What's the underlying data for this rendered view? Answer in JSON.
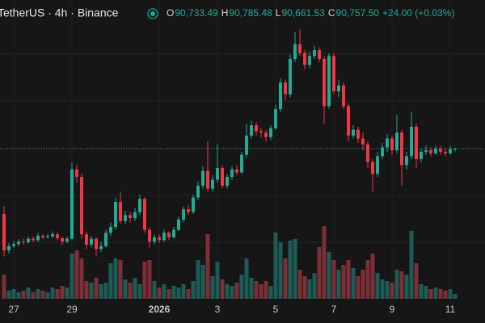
{
  "chart_data": {
    "type": "candlestick",
    "title": "TetherUS · 4h · Binance",
    "ohlc_legend": [
      {
        "label": "O",
        "value": "90,733.49"
      },
      {
        "label": "H",
        "value": "90,785.48"
      },
      {
        "label": "L",
        "value": "90,661.53"
      },
      {
        "label": "C",
        "value": "90,757.50"
      }
    ],
    "change": "+24.00 (+0.03%)",
    "up_color": "#22ab94",
    "down_color": "#f23645",
    "volume_up_color": "#1d5c56",
    "volume_down_color": "#7c2f35",
    "ylim": [
      84840,
      95800
    ],
    "volume_ylim": [
      0,
      9250
    ],
    "categories": [
      null,
      null,
      "27",
      null,
      null,
      null,
      null,
      null,
      null,
      null,
      null,
      null,
      null,
      null,
      "29",
      null,
      null,
      null,
      null,
      null,
      null,
      null,
      null,
      null,
      null,
      null,
      null,
      null,
      null,
      null,
      null,
      null,
      "2026",
      null,
      null,
      null,
      null,
      null,
      null,
      null,
      null,
      null,
      null,
      null,
      "3",
      null,
      null,
      null,
      null,
      null,
      null,
      null,
      null,
      null,
      null,
      null,
      "5",
      null,
      null,
      null,
      null,
      null,
      null,
      null,
      null,
      null,
      null,
      null,
      "7",
      null,
      null,
      null,
      null,
      null,
      null,
      null,
      null,
      null,
      null,
      null,
      "9",
      null,
      null,
      null,
      null,
      null,
      null,
      null,
      null,
      null,
      null,
      null,
      "11",
      null
    ],
    "open": [
      88540,
      87310,
      87450,
      87520,
      87600,
      87580,
      87700,
      87650,
      87800,
      87750,
      87780,
      87850,
      87720,
      87600,
      87700,
      90050,
      89800,
      87850,
      87500,
      87700,
      87350,
      87450,
      87900,
      88100,
      88950,
      88300,
      88500,
      88400,
      88600,
      89050,
      88000,
      87600,
      87750,
      87650,
      87900,
      87750,
      88000,
      88350,
      88700,
      88600,
      89100,
      89500,
      90000,
      89400,
      89700,
      90100,
      89500,
      89800,
      90050,
      89950,
      90550,
      91200,
      91550,
      91350,
      91300,
      91150,
      91450,
      92100,
      93000,
      92600,
      93800,
      94300,
      94000,
      93600,
      93900,
      94100,
      93800,
      92200,
      93900,
      92700,
      92900,
      92200,
      91200,
      91400,
      91100,
      90900,
      90300,
      89900,
      90500,
      90800,
      91100,
      90700,
      91300,
      90200,
      90500,
      91500,
      90400,
      90650,
      90700,
      90600,
      90750,
      90650,
      90600,
      90733.49
    ],
    "high": [
      88800,
      87550,
      87620,
      87680,
      87700,
      87780,
      87760,
      87900,
      87850,
      87860,
      87950,
      87900,
      87760,
      87780,
      90300,
      90200,
      89900,
      87950,
      87800,
      87750,
      87600,
      88000,
      88250,
      89100,
      89300,
      88650,
      88600,
      88750,
      89200,
      89100,
      88100,
      87850,
      87850,
      88000,
      87950,
      88100,
      88450,
      88800,
      88850,
      89200,
      89650,
      90150,
      91000,
      89850,
      90900,
      90200,
      89900,
      90150,
      90200,
      90650,
      91600,
      91700,
      91650,
      91450,
      91400,
      91550,
      92250,
      93150,
      93100,
      93950,
      94700,
      94800,
      94100,
      94050,
      94250,
      94200,
      93900,
      94000,
      94000,
      93100,
      93000,
      92300,
      91550,
      91500,
      91300,
      91000,
      90400,
      90650,
      90950,
      91250,
      91200,
      91900,
      91400,
      90650,
      92000,
      91600,
      90750,
      90850,
      90800,
      90850,
      90850,
      90750,
      90850,
      90785.48
    ],
    "low": [
      87100,
      87200,
      87380,
      87450,
      87500,
      87520,
      87580,
      87600,
      87680,
      87700,
      87720,
      87650,
      87500,
      87550,
      87650,
      89600,
      87700,
      87350,
      87400,
      87100,
      87250,
      87400,
      87800,
      88000,
      88200,
      88200,
      88250,
      88300,
      88500,
      87900,
      87400,
      87500,
      87550,
      87600,
      87650,
      87700,
      87950,
      88250,
      88500,
      88550,
      89000,
      89400,
      89300,
      89300,
      89600,
      89400,
      89400,
      89700,
      89850,
      89900,
      90450,
      91100,
      91200,
      91150,
      91000,
      91050,
      91400,
      92000,
      92400,
      92500,
      93700,
      93900,
      93450,
      93500,
      93800,
      93700,
      91600,
      92100,
      92600,
      92500,
      92100,
      91000,
      91100,
      90950,
      90700,
      90100,
      89300,
      89800,
      90400,
      90650,
      90550,
      90600,
      89500,
      90050,
      90400,
      90100,
      90300,
      90550,
      90500,
      90550,
      90550,
      90500,
      90550,
      90661.53
    ],
    "close": [
      87310,
      87450,
      87520,
      87600,
      87580,
      87700,
      87650,
      87800,
      87750,
      87780,
      87850,
      87720,
      87600,
      87700,
      90050,
      89800,
      87850,
      87500,
      87700,
      87350,
      87450,
      87900,
      88100,
      88950,
      88300,
      88500,
      88400,
      88600,
      89050,
      88000,
      87600,
      87750,
      87650,
      87900,
      87750,
      88000,
      88350,
      88700,
      88600,
      89100,
      89500,
      90000,
      89400,
      89700,
      90100,
      89500,
      89800,
      90050,
      89950,
      90550,
      91200,
      91550,
      91350,
      91300,
      91150,
      91450,
      92100,
      93000,
      92600,
      93800,
      94300,
      94000,
      93600,
      93900,
      94100,
      93800,
      92200,
      93900,
      92700,
      92900,
      92200,
      91200,
      91400,
      91100,
      90900,
      90300,
      89900,
      90500,
      90800,
      91100,
      90700,
      91300,
      90200,
      90500,
      91500,
      90400,
      90650,
      90700,
      90600,
      90750,
      90650,
      90600,
      90733.49,
      90757.5
    ],
    "volume": [
      750,
      250,
      300,
      200,
      250,
      350,
      200,
      300,
      250,
      200,
      350,
      300,
      400,
      350,
      1400,
      1500,
      1250,
      550,
      500,
      650,
      450,
      500,
      1100,
      1250,
      1200,
      600,
      500,
      650,
      450,
      1150,
      1200,
      550,
      350,
      450,
      300,
      400,
      350,
      450,
      300,
      550,
      1200,
      1050,
      2000,
      700,
      1150,
      600,
      450,
      400,
      500,
      750,
      1250,
      650,
      550,
      450,
      550,
      400,
      2050,
      1750,
      1250,
      1800,
      1850,
      900,
      700,
      600,
      800,
      1600,
      2250,
      1450,
      1200,
      900,
      1050,
      1200,
      950,
      700,
      900,
      1200,
      1400,
      800,
      600,
      550,
      500,
      900,
      850,
      750,
      2100,
      1100,
      450,
      400,
      300,
      350,
      300,
      250,
      300,
      150
    ]
  }
}
